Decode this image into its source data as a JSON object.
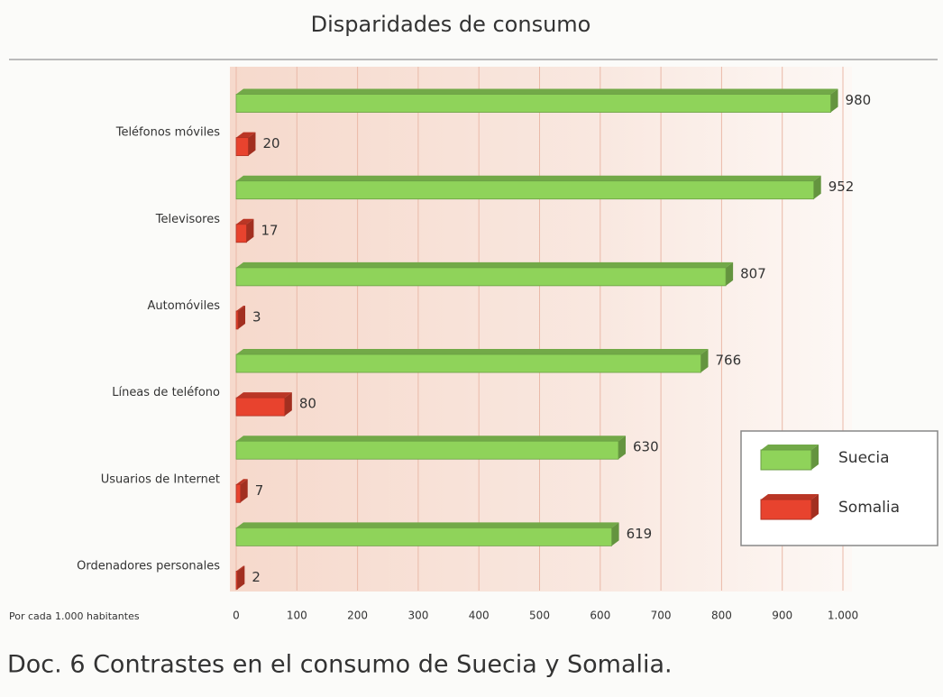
{
  "chart_data": {
    "type": "barh",
    "title": "Disparidades de consumo",
    "caption": "Doc. 6 Contrastes en el consumo de Suecia y Somalia.",
    "xlabel": "Por cada 1.000 habitantes",
    "categories": [
      "Teléfonos móviles",
      "Televisores",
      "Automóviles",
      "Líneas de teléfono",
      "Usuarios de Internet",
      "Ordenadores personales"
    ],
    "series": [
      {
        "name": "Suecia",
        "color": "#8fd35a",
        "values": [
          980,
          952,
          807,
          766,
          630,
          619
        ]
      },
      {
        "name": "Somalia",
        "color": "#e8432e",
        "values": [
          20,
          17,
          3,
          80,
          7,
          2
        ]
      }
    ],
    "xlim": [
      0,
      1000
    ],
    "xticks": [
      0,
      100,
      200,
      300,
      400,
      500,
      600,
      700,
      800,
      900,
      {
        "value": 1000,
        "label": "1.000"
      }
    ],
    "grid": true,
    "legend": "lower right"
  }
}
